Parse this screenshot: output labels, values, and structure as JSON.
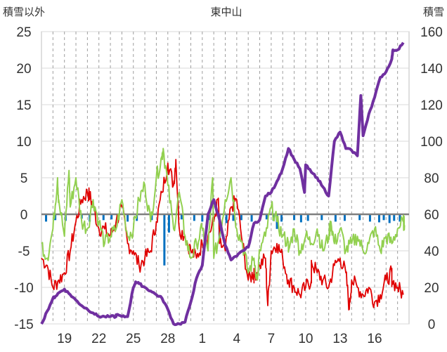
{
  "chart_data": {
    "type": "line",
    "title": "東中山",
    "left_axis_label": "積雪以外",
    "right_axis_label": "積雪",
    "left_ylim": [
      -15,
      25
    ],
    "left_ticks": [
      "25",
      "20",
      "15",
      "10",
      "5",
      "0",
      "-5",
      "-10",
      "-15"
    ],
    "right_ylim": [
      0,
      160
    ],
    "right_ticks": [
      "160",
      "140",
      "120",
      "100",
      "80",
      "60",
      "40",
      "20",
      "0"
    ],
    "x_ticks": [
      "19",
      "22",
      "25",
      "28",
      "1",
      "4",
      "7",
      "10",
      "13",
      "16"
    ],
    "x_tick_positions": [
      2,
      5,
      8,
      11,
      14,
      17,
      20,
      23,
      26,
      29
    ],
    "xlim": [
      0,
      32
    ],
    "grid": true,
    "colors": {
      "red": "#e00000",
      "green": "#92d050",
      "purple": "#7030a0",
      "blue": "#0070c0",
      "zero_line": "#7f7f7f"
    },
    "series": [
      {
        "color": "red",
        "axis": "left",
        "x": [
          0,
          0.5,
          1,
          1.5,
          2,
          2.5,
          3,
          3.5,
          4,
          4.5,
          5,
          5.5,
          6,
          6.5,
          7,
          7.5,
          8,
          8.5,
          9,
          9.5,
          10,
          10.5,
          11,
          11.5,
          12,
          12.5,
          13,
          13.5,
          14,
          14.5,
          15,
          15.5,
          16,
          16.5,
          17,
          17.5,
          18,
          18.5,
          19,
          19.5,
          20,
          20.5,
          21,
          21.5,
          22,
          22.5,
          23,
          23.5,
          24,
          24.5,
          25,
          25.5,
          26,
          26.5,
          27,
          27.5,
          28,
          28.5,
          29,
          29.5,
          30,
          30.5,
          31,
          31.5
        ],
        "values": [
          -6,
          -7,
          -10,
          -9,
          -8,
          -5,
          -1,
          2,
          3,
          1,
          -2,
          -2,
          -3,
          -1,
          1,
          -4,
          -5,
          -7,
          -6,
          -5,
          -1,
          3,
          7,
          4,
          -2,
          -3,
          -5,
          -6,
          -4,
          -3,
          -1,
          -4,
          -5,
          1,
          2,
          -4,
          -9,
          -8,
          -7,
          -6,
          -5,
          -4,
          -6,
          -9,
          -10,
          -11,
          -10,
          -9,
          -8,
          -9,
          -10,
          -7,
          -6,
          -8,
          -9,
          -10,
          -11,
          -10,
          -12,
          -11,
          -9,
          -8,
          -10,
          -11
        ],
        "extra_x": [
          4.2,
          11.7,
          15.4,
          18.5,
          19.7,
          23.5,
          26.8,
          30.5
        ],
        "extra_values": [
          2.5,
          7.5,
          2.2,
          -8.5,
          -12.5,
          -6.5,
          -13,
          -9
        ]
      },
      {
        "color": "green",
        "axis": "left",
        "x": [
          0,
          0.5,
          1,
          1.5,
          2,
          2.5,
          3,
          3.5,
          4,
          4.5,
          5,
          5.5,
          6,
          6.5,
          7,
          7.5,
          8,
          8.5,
          9,
          9.5,
          10,
          10.5,
          11,
          11.5,
          12,
          12.5,
          13,
          13.5,
          14,
          14.5,
          15,
          15.5,
          16,
          16.5,
          17,
          17.5,
          18,
          18.5,
          19,
          19.5,
          20,
          20.5,
          21,
          21.5,
          22,
          22.5,
          23,
          23.5,
          24,
          24.5,
          25,
          25.5,
          26,
          26.5,
          27,
          27.5,
          28,
          28.5,
          29,
          29.5,
          30,
          30.5,
          31,
          31.5
        ],
        "values": [
          -4,
          -6,
          -2,
          2,
          -3,
          1,
          5,
          -1,
          -2,
          2,
          -1,
          -4,
          -3,
          -2,
          2,
          -3,
          -2,
          2,
          4,
          -1,
          5,
          8,
          4,
          -2,
          3,
          -3,
          -6,
          -4,
          -2,
          -5,
          -6,
          -3,
          2,
          5,
          -2,
          -4,
          -8,
          -6,
          -5,
          -3,
          1,
          -1,
          -3,
          -4,
          -2,
          -5,
          -3,
          -4,
          -2,
          -5,
          -3,
          -4,
          -2,
          -5,
          -4,
          -3,
          -5,
          -4,
          -2,
          -5,
          -3,
          -4,
          -2,
          -1
        ],
        "extra_x": [
          1.4,
          2.4,
          10.6,
          14.9,
          18.8,
          21.5,
          25.2,
          31.6
        ],
        "extra_values": [
          5,
          6,
          9,
          5,
          -9,
          -5,
          -1,
          -1.5
        ]
      },
      {
        "color": "purple",
        "axis": "right",
        "x": [
          0,
          0.5,
          1,
          1.5,
          2,
          2.5,
          3,
          3.5,
          4,
          4.5,
          5,
          5.5,
          6,
          6.5,
          7,
          7.5,
          8,
          8.5,
          9,
          9.5,
          10,
          10.5,
          11,
          11.5,
          12,
          12.5,
          13,
          13.5,
          14,
          14.5,
          15,
          15.5,
          16,
          16.5,
          17,
          17.5,
          18,
          18.5,
          19,
          19.5,
          20,
          20.5,
          21,
          21.5,
          22,
          22.5,
          23,
          23.5,
          24,
          24.5,
          25,
          25.5,
          26,
          26.5,
          27,
          27.5,
          28,
          28.5,
          29,
          29.5,
          30,
          30.5,
          31,
          31.5
        ],
        "values": [
          0,
          7,
          14,
          17,
          19,
          16,
          13,
          10,
          8,
          6,
          4,
          4,
          4,
          4,
          4,
          4,
          20,
          22,
          20,
          18,
          16,
          14,
          8,
          0,
          0,
          1,
          12,
          25,
          32,
          60,
          68,
          57,
          43,
          35,
          37,
          40,
          42,
          55,
          57,
          70,
          72,
          78,
          85,
          96,
          90,
          85,
          87,
          83,
          80,
          75,
          70,
          100,
          105,
          96,
          95,
          92,
          103,
          115,
          124,
          135,
          138,
          145,
          150,
          154
        ],
        "extra_x": [
          1.2,
          6.5,
          8.2,
          22.9,
          27.8,
          30.6
        ],
        "extra_values": [
          15,
          5,
          23,
          72,
          125,
          150
        ]
      }
    ],
    "bars": {
      "color": "blue",
      "axis": "left",
      "x": [
        0.4,
        1.2,
        2.1,
        3.5,
        4.2,
        5.4,
        6.1,
        7.5,
        8.3,
        9.6,
        10.7,
        11.1,
        12.2,
        13.3,
        14.0,
        14.6,
        15.5,
        16.1,
        16.7,
        17.4,
        18.3,
        19.6,
        20.2,
        20.5,
        20.9,
        22.0,
        22.6,
        23.2,
        24.4,
        25.6,
        26.4,
        27.7,
        28.6,
        29.4,
        29.8,
        30.3,
        30.7,
        31.2
      ],
      "values": [
        -1,
        -0.8,
        -0.9,
        -0.6,
        -1,
        -0.8,
        -0.7,
        -1,
        -0.9,
        -0.8,
        -7,
        -2.5,
        -0.7,
        -0.9,
        -1,
        -0.8,
        -3.5,
        -1.2,
        -0.9,
        -0.8,
        -1,
        -0.7,
        -0.9,
        -2,
        -1,
        -0.8,
        -1.1,
        -0.9,
        -0.8,
        -1,
        -0.9,
        -0.8,
        -1,
        -1.1,
        -0.8,
        -1.2,
        -0.9,
        -1
      ]
    }
  }
}
